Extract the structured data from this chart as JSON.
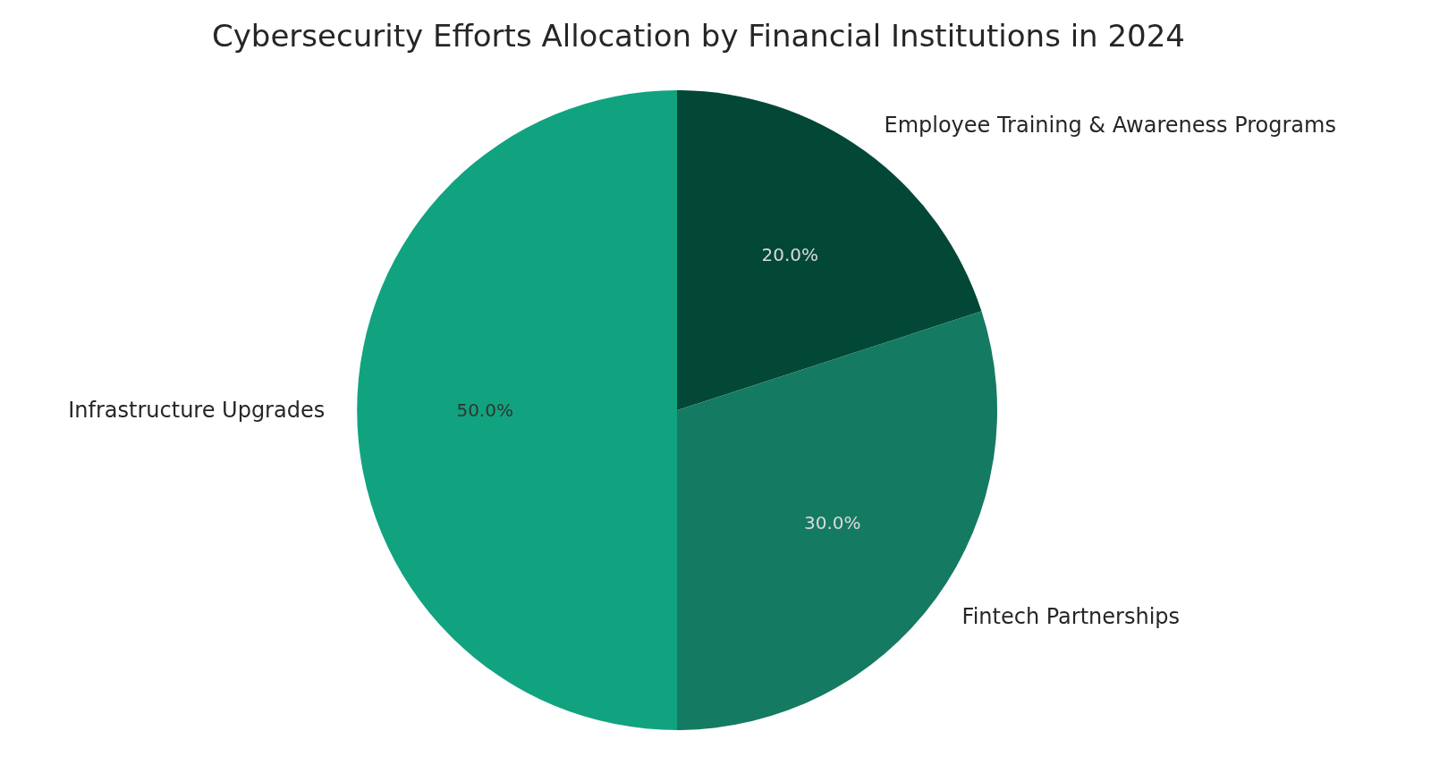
{
  "chart_data": {
    "type": "pie",
    "title": "Cybersecurity Efforts Allocation by Financial Institutions in 2024",
    "categories": [
      "Employee Training & Awareness Programs",
      "Fintech Partnerships",
      "Infrastructure Upgrades"
    ],
    "values": [
      20,
      30,
      50
    ],
    "colors": [
      "#034837",
      "#157a62",
      "#11a37f"
    ],
    "value_labels": [
      "20.0%",
      "30.0%",
      "50.0%"
    ]
  }
}
